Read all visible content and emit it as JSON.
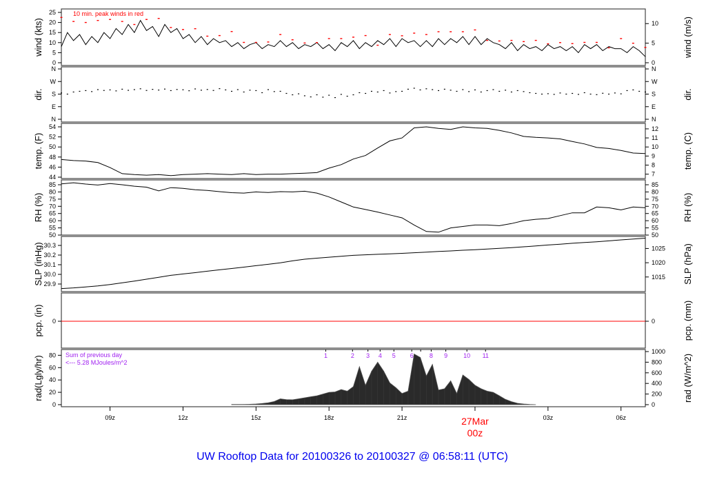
{
  "title": "UW Rooftop Data for 20100326  to  20100327 @ 06:58:11  (UTC)",
  "colors": {
    "line": "#000000",
    "peak": "#ff0000",
    "pcp": "#ff0000",
    "rad_fill": "#2a2a2a",
    "annot_purple": "#a020f0",
    "title": "#0000ee",
    "date_label": "#ff0000"
  },
  "times_15min": [
    "07:00",
    "07:15",
    "07:30",
    "07:45",
    "08:00",
    "08:15",
    "08:30",
    "08:45",
    "09:00",
    "09:15",
    "09:30",
    "09:45",
    "10:00",
    "10:15",
    "10:30",
    "10:45",
    "11:00",
    "11:15",
    "11:30",
    "11:45",
    "12:00",
    "12:15",
    "12:30",
    "12:45",
    "13:00",
    "13:15",
    "13:30",
    "13:45",
    "14:00",
    "14:15",
    "14:30",
    "14:45",
    "15:00",
    "15:15",
    "15:30",
    "15:45",
    "16:00",
    "16:15",
    "16:30",
    "16:45",
    "17:00",
    "17:15",
    "17:30",
    "17:45",
    "18:00",
    "18:15",
    "18:30",
    "18:45",
    "19:00",
    "19:15",
    "19:30",
    "19:45",
    "20:00",
    "20:15",
    "20:30",
    "20:45",
    "21:00",
    "21:15",
    "21:30",
    "21:45",
    "22:00",
    "22:15",
    "22:30",
    "22:45",
    "23:00",
    "23:15",
    "23:30",
    "23:45",
    "00:00",
    "00:15",
    "00:30",
    "00:45",
    "01:00",
    "01:15",
    "01:30",
    "01:45",
    "02:00",
    "02:15",
    "02:30",
    "02:45",
    "03:00",
    "03:15",
    "03:30",
    "03:45",
    "04:00",
    "04:15",
    "04:30",
    "04:45",
    "05:00",
    "05:15",
    "05:30",
    "05:45",
    "06:00",
    "06:15",
    "06:30",
    "06:45",
    "07:00"
  ],
  "times_30min": [
    "07:00",
    "07:30",
    "08:00",
    "08:30",
    "09:00",
    "09:30",
    "10:00",
    "10:30",
    "11:00",
    "11:30",
    "12:00",
    "12:30",
    "13:00",
    "13:30",
    "14:00",
    "14:30",
    "15:00",
    "15:30",
    "16:00",
    "16:30",
    "17:00",
    "17:30",
    "18:00",
    "18:30",
    "19:00",
    "19:30",
    "20:00",
    "20:30",
    "21:00",
    "21:30",
    "22:00",
    "22:30",
    "23:00",
    "23:30",
    "00:00",
    "00:30",
    "01:00",
    "01:30",
    "02:00",
    "02:30",
    "03:00",
    "03:30",
    "04:00",
    "04:30",
    "05:00",
    "05:30",
    "06:00",
    "06:30",
    "07:00"
  ],
  "x_axis": {
    "ticks": [
      {
        "time": "09:00",
        "label": "09z"
      },
      {
        "time": "12:00",
        "label": "12z"
      },
      {
        "time": "15:00",
        "label": "15z"
      },
      {
        "time": "18:00",
        "label": "18z"
      },
      {
        "time": "21:00",
        "label": "21z"
      },
      {
        "time": "24:00",
        "label": ""
      },
      {
        "time": "27:00",
        "label": "03z"
      },
      {
        "time": "30:00",
        "label": "06z"
      }
    ],
    "date_label": "27Mar",
    "date_hour_label": "00z"
  },
  "chart_data": [
    {
      "id": "wind",
      "type": "line",
      "ylabel_left": "wind (kts)",
      "ylabel_right": "wind (m/s)",
      "ylim": [
        0,
        25
      ],
      "left_ticks": [
        "0",
        "5",
        "10",
        "15",
        "20",
        "25"
      ],
      "right_ticks": [
        "0",
        "5",
        "10"
      ],
      "annotation": "10 min. peak winds in red",
      "times": "times_15min",
      "values": [
        8,
        15,
        11,
        14,
        9,
        13,
        10,
        15,
        12,
        17,
        14,
        19,
        15,
        21,
        16,
        18,
        13,
        19,
        15,
        17,
        12,
        14,
        10,
        13,
        9,
        12,
        10,
        11,
        8,
        10,
        7,
        9,
        10,
        7,
        9,
        8,
        11,
        8,
        10,
        7,
        9,
        8,
        10,
        7,
        9,
        6,
        10,
        8,
        11,
        7,
        10,
        8,
        11,
        9,
        12,
        8,
        12,
        10,
        11,
        8,
        11,
        8,
        12,
        9,
        12,
        10,
        13,
        9,
        13,
        9,
        12,
        10,
        9,
        7,
        10,
        6,
        9,
        7,
        8,
        6,
        9,
        7,
        8,
        6,
        8,
        5,
        9,
        7,
        9,
        6,
        8,
        7,
        7,
        5,
        8,
        6,
        3
      ],
      "peak_times": "times_30min",
      "peak_values": [
        22.5,
        20.5,
        20,
        21,
        21.5,
        20.5,
        19,
        21.5,
        22,
        17.5,
        16.5,
        16.9,
        13.2,
        13.5,
        15.5,
        10.1,
        10.1,
        10.3,
        14,
        11.4,
        9.8,
        10,
        12,
        12,
        12.7,
        13.5,
        8.7,
        14,
        13.4,
        14.7,
        14,
        15.4,
        15.4,
        15.4,
        16.3,
        11.1,
        10.8,
        11.1,
        10.5,
        11.1,
        9.4,
        10,
        9.5,
        10.1,
        10.1,
        7.4,
        12,
        9.7,
        7.6
      ]
    },
    {
      "id": "dir",
      "type": "scatter",
      "ylabel_left": "dir.",
      "ylabel_right": "dir.",
      "ylim": [
        0,
        360
      ],
      "left_ticks": [
        "N",
        "W",
        "S",
        "E",
        "N"
      ],
      "right_ticks": [
        "N",
        "W",
        "S",
        "E",
        "N"
      ],
      "times": "times_15min",
      "values": [
        188,
        180,
        195,
        200,
        205,
        198,
        212,
        206,
        210,
        203,
        215,
        207,
        212,
        218,
        206,
        214,
        209,
        216,
        205,
        213,
        211,
        204,
        217,
        208,
        213,
        206,
        219,
        210,
        200,
        212,
        195,
        208,
        205,
        190,
        212,
        198,
        200,
        185,
        175,
        182,
        168,
        160,
        175,
        158,
        172,
        155,
        178,
        165,
        175,
        190,
        185,
        200,
        195,
        205,
        188,
        198,
        200,
        215,
        222,
        210,
        218,
        212,
        205,
        215,
        208,
        200,
        212,
        198,
        210,
        195,
        205,
        212,
        200,
        208,
        195,
        205,
        198,
        190,
        185,
        180,
        183,
        178,
        188,
        180,
        185,
        178,
        190,
        180,
        176,
        186,
        180,
        188,
        182,
        205,
        210,
        200,
        195
      ]
    },
    {
      "id": "temp",
      "type": "line",
      "ylabel_left": "temp. (F)",
      "ylabel_right": "temp. (C)",
      "ylim": [
        44,
        54
      ],
      "left_ticks": [
        "44",
        "46",
        "48",
        "50",
        "52",
        "54"
      ],
      "right_ticks": [
        "7",
        "8",
        "9",
        "10",
        "11",
        "12"
      ],
      "times": "times_30min",
      "values": [
        47.5,
        47.3,
        47.2,
        46.9,
        45.9,
        44.7,
        44.5,
        44.4,
        44.5,
        44.3,
        44.5,
        44.6,
        44.7,
        44.6,
        44.5,
        44.7,
        44.5,
        44.6,
        44.6,
        44.7,
        44.8,
        44.9,
        45.8,
        46.5,
        47.6,
        48.3,
        49.8,
        51.2,
        51.8,
        53.8,
        54.0,
        53.7,
        53.5,
        54.0,
        53.8,
        53.7,
        53.3,
        52.8,
        52.1,
        51.9,
        51.8,
        51.6,
        51.1,
        50.6,
        49.9,
        49.7,
        49.3,
        48.8,
        48.7
      ]
    },
    {
      "id": "rh",
      "type": "line",
      "ylabel_left": "RH (%)",
      "ylabel_right": "RH (%)",
      "ylim": [
        50,
        85
      ],
      "left_ticks": [
        "50",
        "55",
        "60",
        "65",
        "70",
        "75",
        "80",
        "85"
      ],
      "right_ticks": [
        "50",
        "55",
        "60",
        "65",
        "70",
        "75",
        "80",
        "85"
      ],
      "times": "times_30min",
      "values": [
        85.6,
        86.4,
        85.5,
        84.8,
        85.8,
        85.0,
        84.0,
        83.3,
        80.8,
        83.0,
        82.5,
        81.5,
        81.0,
        80.2,
        79.5,
        79.2,
        80.0,
        79.6,
        80.2,
        80.0,
        80.5,
        79.2,
        76.5,
        73.0,
        69.5,
        67.8,
        66.0,
        64.0,
        62.0,
        57.0,
        52.5,
        52.0,
        55.0,
        56.0,
        57.0,
        57.0,
        56.5,
        58.0,
        60.0,
        61.0,
        61.5,
        63.5,
        65.5,
        65.5,
        69.5,
        69.0,
        67.5,
        69.5,
        69.0
      ]
    },
    {
      "id": "slp",
      "type": "line",
      "ylabel_left": "SLP (inHg)",
      "ylabel_right": "SLP (hPa)",
      "ylim": [
        29.9,
        30.3
      ],
      "left_ticks": [
        "29.9",
        "30.0",
        "30.1",
        "30.2",
        "30.3"
      ],
      "right_ticks": [
        "1015",
        "1020",
        "1025"
      ],
      "times": "times_30min",
      "values": [
        29.853,
        29.86,
        29.87,
        29.88,
        29.895,
        29.912,
        29.93,
        29.95,
        29.97,
        29.99,
        30.004,
        30.018,
        30.033,
        30.047,
        30.061,
        30.075,
        30.09,
        30.104,
        30.12,
        30.14,
        30.157,
        30.168,
        30.178,
        30.188,
        30.197,
        30.203,
        30.208,
        30.213,
        30.218,
        30.224,
        30.23,
        30.237,
        30.243,
        30.25,
        30.256,
        30.263,
        30.269,
        30.277,
        30.286,
        30.295,
        30.304,
        30.313,
        30.322,
        30.33,
        30.338,
        30.347,
        30.357,
        30.366,
        30.375
      ]
    },
    {
      "id": "pcp",
      "type": "line",
      "ylabel_left": "pcp. (in)",
      "ylabel_right": "pcp. (mm)",
      "left_ticks": [
        "0"
      ],
      "right_ticks": [
        "0"
      ],
      "values_constant": 0
    },
    {
      "id": "rad",
      "type": "area",
      "ylabel_left": "rad(Lgly/hr)",
      "ylabel_right": "rad (W/m^2)",
      "ylim": [
        0,
        1000
      ],
      "left_ticks": [
        "0",
        "20",
        "40",
        "60",
        "80"
      ],
      "right_ticks": [
        "0",
        "200",
        "400",
        "600",
        "800",
        "1000"
      ],
      "annotation_line1": "Sum of previous day",
      "annotation_line2": "<--- 5.28 MJoules/m^2",
      "hour_markers": [
        {
          "time": "17:52",
          "label": "1"
        },
        {
          "time": "18:58",
          "label": "2"
        },
        {
          "time": "19:36",
          "label": "3"
        },
        {
          "time": "20:06",
          "label": "4"
        },
        {
          "time": "20:40",
          "label": "5"
        },
        {
          "time": "21:24",
          "label": "6"
        },
        {
          "time": "21:46",
          "label": ""
        },
        {
          "time": "22:12",
          "label": "8"
        },
        {
          "time": "22:48",
          "label": "9"
        },
        {
          "time": "23:40",
          "label": "10"
        },
        {
          "time": "00:26",
          "label": "11"
        }
      ],
      "times": [
        "14:00",
        "14:15",
        "14:30",
        "14:45",
        "15:00",
        "15:15",
        "15:30",
        "15:45",
        "16:00",
        "16:15",
        "16:30",
        "16:45",
        "17:00",
        "17:15",
        "17:30",
        "17:45",
        "18:00",
        "18:15",
        "18:30",
        "18:45",
        "19:00",
        "19:15",
        "19:30",
        "19:45",
        "20:00",
        "20:15",
        "20:30",
        "20:45",
        "21:00",
        "21:15",
        "21:30",
        "21:45",
        "22:00",
        "22:15",
        "22:30",
        "22:45",
        "23:00",
        "23:15",
        "23:30",
        "23:45",
        "00:00",
        "00:15",
        "00:30",
        "00:45",
        "01:00",
        "01:15",
        "01:30",
        "01:45",
        "02:00",
        "02:15",
        "02:30"
      ],
      "values": [
        4,
        4,
        5,
        8,
        13,
        22,
        35,
        60,
        110,
        95,
        92,
        110,
        130,
        150,
        167,
        200,
        233,
        240,
        285,
        255,
        340,
        715,
        365,
        630,
        800,
        630,
        410,
        320,
        210,
        255,
        955,
        890,
        540,
        760,
        275,
        300,
        450,
        210,
        560,
        475,
        365,
        300,
        255,
        233,
        167,
        100,
        57,
        26,
        13,
        4,
        0
      ]
    }
  ]
}
